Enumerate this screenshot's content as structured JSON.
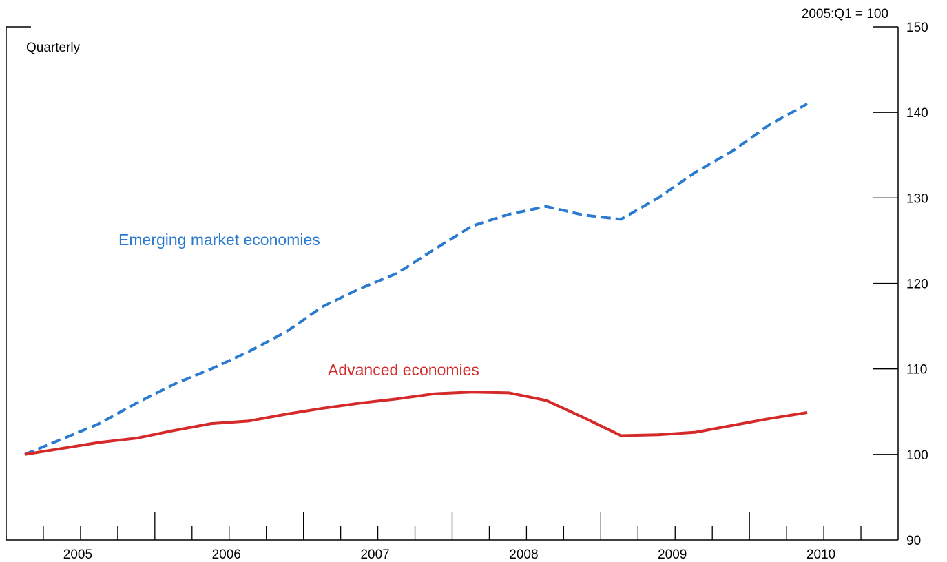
{
  "chart_data": {
    "type": "line",
    "frequency_note": "Quarterly",
    "y_unit_label": "2005:Q1 = 100",
    "y_axis_side": "right",
    "ylim": [
      90,
      150
    ],
    "y_ticks": [
      90,
      100,
      110,
      120,
      130,
      140,
      150
    ],
    "x_range": [
      "2005:Q1",
      "2010:Q4"
    ],
    "year_labels": [
      "2005",
      "2006",
      "2007",
      "2008",
      "2009",
      "2010"
    ],
    "grid": false,
    "legend": "inline labels",
    "x": [
      "2005:Q1",
      "2005:Q2",
      "2005:Q3",
      "2005:Q4",
      "2006:Q1",
      "2006:Q2",
      "2006:Q3",
      "2006:Q4",
      "2007:Q1",
      "2007:Q2",
      "2007:Q3",
      "2007:Q4",
      "2008:Q1",
      "2008:Q2",
      "2008:Q3",
      "2008:Q4",
      "2009:Q1",
      "2009:Q2",
      "2009:Q3",
      "2009:Q4",
      "2010:Q1",
      "2010:Q2"
    ],
    "series": [
      {
        "name": "Emerging market economies",
        "color": "#2a7ad0",
        "dash": "dashed",
        "values": [
          100.0,
          101.8,
          103.6,
          106.0,
          108.2,
          110.0,
          112.0,
          114.3,
          117.3,
          119.4,
          121.2,
          124.0,
          126.7,
          128.1,
          129.0,
          128.0,
          127.5,
          130.0,
          133.0,
          135.5,
          138.6,
          141.0
        ]
      },
      {
        "name": "Advanced economies",
        "color": "#d42a2a",
        "dash": "solid",
        "values": [
          100.0,
          100.7,
          101.4,
          101.9,
          102.8,
          103.6,
          103.9,
          104.7,
          105.4,
          106.0,
          106.5,
          107.1,
          107.3,
          107.2,
          106.3,
          104.3,
          102.2,
          102.3,
          102.6,
          103.4,
          104.2,
          104.9
        ]
      }
    ]
  }
}
